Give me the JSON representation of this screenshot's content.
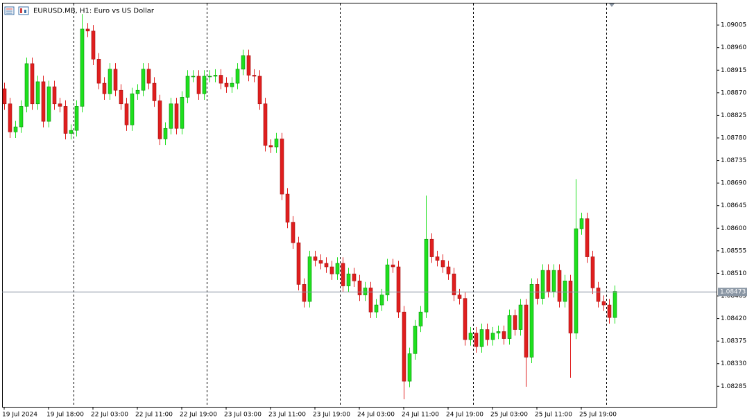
{
  "chart_data": {
    "type": "candlestick",
    "title": "EURUSD.MB, H1:  Euro vs US Dollar",
    "categories": [
      "19 Jul 2024",
      null,
      null,
      null,
      null,
      null,
      null,
      null,
      "19 Jul 18:00",
      null,
      null,
      null,
      null,
      null,
      null,
      null,
      "22 Jul 03:00",
      null,
      null,
      null,
      null,
      null,
      null,
      null,
      "22 Jul 11:00",
      null,
      null,
      null,
      null,
      null,
      null,
      null,
      "22 Jul 19:00",
      null,
      null,
      null,
      null,
      null,
      null,
      null,
      "23 Jul 03:00",
      null,
      null,
      null,
      null,
      null,
      null,
      null,
      "23 Jul 11:00",
      null,
      null,
      null,
      null,
      null,
      null,
      null,
      "23 Jul 19:00",
      null,
      null,
      null,
      null,
      null,
      null,
      null,
      "24 Jul 03:00",
      null,
      null,
      null,
      null,
      null,
      null,
      null,
      "24 Jul 11:00",
      null,
      null,
      null,
      null,
      null,
      null,
      null,
      "24 Jul 19:00",
      null,
      null,
      null,
      null,
      null,
      null,
      null,
      "25 Jul 03:00",
      null,
      null,
      null,
      null,
      null,
      null,
      null,
      "25 Jul 11:00",
      null,
      null,
      null,
      null,
      null,
      null,
      null,
      "25 Jul 19:00",
      null,
      null,
      null,
      null,
      null,
      null
    ],
    "open": [
      1.08878,
      1.08848,
      1.08792,
      1.08802,
      1.08843,
      1.08928,
      1.08848,
      1.08892,
      1.08813,
      1.08882,
      1.08848,
      1.08843,
      1.08789,
      1.08795,
      1.08843,
      1.08997,
      1.08993,
      1.08937,
      1.08889,
      1.08868,
      1.08917,
      1.08875,
      1.08848,
      1.08806,
      1.08868,
      1.08875,
      1.08917,
      1.08889,
      1.08854,
      1.08778,
      1.08799,
      1.08848,
      1.08799,
      1.08861,
      1.08903,
      1.08903,
      1.08868,
      1.08903,
      1.08903,
      1.08905,
      1.08889,
      1.08882,
      1.08889,
      1.08917,
      1.08944,
      1.08905,
      1.08903,
      1.08848,
      1.08765,
      1.08762,
      1.08778,
      1.08668,
      1.08612,
      1.08571,
      1.08488,
      1.08454,
      1.08543,
      1.08536,
      1.0853,
      1.08523,
      1.08509,
      1.0853,
      1.08485,
      1.08509,
      1.08495,
      1.08467,
      1.08481,
      1.08433,
      1.08447,
      1.08467,
      1.08527,
      1.08523,
      1.08433,
      1.08295,
      1.0835,
      1.08405,
      1.08433,
      1.08578,
      1.08543,
      1.08536,
      1.08523,
      1.08509,
      1.08467,
      1.0846,
      1.08378,
      1.08391,
      1.08364,
      1.08398,
      1.08378,
      1.08391,
      1.08394,
      1.0838,
      1.08426,
      1.08398,
      1.08447,
      1.08343,
      1.08488,
      1.0846,
      1.08516,
      1.08474,
      1.08516,
      1.08454,
      1.08495,
      1.08391,
      1.08599,
      1.08619,
      1.08543,
      1.08481,
      1.08454,
      1.08447,
      1.08422
    ],
    "high": [
      1.0889,
      1.0886,
      1.08814,
      1.08855,
      1.0894,
      1.0894,
      1.08904,
      1.08904,
      1.08894,
      1.08894,
      1.0886,
      1.08855,
      1.08807,
      1.08855,
      1.09027,
      1.09009,
      1.09005,
      1.08949,
      1.08901,
      1.08929,
      1.08929,
      1.08887,
      1.0886,
      1.0888,
      1.08887,
      1.08929,
      1.08929,
      1.08901,
      1.08866,
      1.08811,
      1.0886,
      1.0886,
      1.08873,
      1.08915,
      1.08915,
      1.08915,
      1.08915,
      1.08915,
      1.08917,
      1.08917,
      1.08901,
      1.08901,
      1.08929,
      1.08956,
      1.08956,
      1.08917,
      1.08915,
      1.0886,
      1.08777,
      1.0879,
      1.0879,
      1.0868,
      1.08624,
      1.08583,
      1.085,
      1.08555,
      1.08555,
      1.08548,
      1.08542,
      1.08535,
      1.08542,
      1.08542,
      1.08521,
      1.08521,
      1.08507,
      1.08493,
      1.08493,
      1.08459,
      1.08479,
      1.08539,
      1.08539,
      1.08535,
      1.08445,
      1.08362,
      1.08417,
      1.08445,
      1.08665,
      1.0859,
      1.08555,
      1.08548,
      1.08535,
      1.08521,
      1.08479,
      1.08472,
      1.08403,
      1.08403,
      1.0841,
      1.0841,
      1.08403,
      1.08406,
      1.08406,
      1.08438,
      1.08438,
      1.08459,
      1.08459,
      1.085,
      1.085,
      1.08528,
      1.08528,
      1.08528,
      1.08528,
      1.08507,
      1.08507,
      1.08698,
      1.08631,
      1.08631,
      1.08555,
      1.08493,
      1.08466,
      1.08459,
      1.08486
    ],
    "low": [
      1.08836,
      1.0878,
      1.0878,
      1.0879,
      1.08831,
      1.08836,
      1.08836,
      1.08801,
      1.08801,
      1.08836,
      1.08831,
      1.08777,
      1.08777,
      1.08783,
      1.08831,
      1.08981,
      1.08925,
      1.08877,
      1.08856,
      1.08856,
      1.08863,
      1.08836,
      1.08794,
      1.08794,
      1.08856,
      1.08863,
      1.08877,
      1.08842,
      1.08766,
      1.08766,
      1.08787,
      1.08787,
      1.08787,
      1.08849,
      1.08891,
      1.08856,
      1.08856,
      1.08891,
      1.08891,
      1.08877,
      1.0887,
      1.0887,
      1.08877,
      1.08905,
      1.08893,
      1.08891,
      1.08836,
      1.08753,
      1.0875,
      1.0875,
      1.08656,
      1.086,
      1.08559,
      1.08476,
      1.08442,
      1.08442,
      1.08524,
      1.08518,
      1.08511,
      1.08497,
      1.08497,
      1.08473,
      1.08473,
      1.08483,
      1.08455,
      1.08455,
      1.08421,
      1.08421,
      1.08435,
      1.08455,
      1.08511,
      1.08421,
      1.08259,
      1.08283,
      1.08338,
      1.08393,
      1.08421,
      1.08531,
      1.08524,
      1.08511,
      1.08497,
      1.08455,
      1.08448,
      1.08366,
      1.08366,
      1.08352,
      1.08352,
      1.08366,
      1.08366,
      1.08379,
      1.08368,
      1.08368,
      1.08386,
      1.08386,
      1.08284,
      1.08331,
      1.08448,
      1.08448,
      1.08462,
      1.08462,
      1.08442,
      1.08442,
      1.08302,
      1.08379,
      1.08587,
      1.08531,
      1.08469,
      1.08442,
      1.08435,
      1.0841,
      1.0841
    ],
    "close": [
      1.08848,
      1.08792,
      1.08802,
      1.08843,
      1.08928,
      1.08848,
      1.08892,
      1.08813,
      1.08882,
      1.08848,
      1.08843,
      1.08789,
      1.08795,
      1.08843,
      1.08997,
      1.08993,
      1.08937,
      1.08889,
      1.08868,
      1.08917,
      1.08875,
      1.08848,
      1.08806,
      1.08868,
      1.08875,
      1.08917,
      1.08889,
      1.08854,
      1.08778,
      1.08799,
      1.08848,
      1.08799,
      1.08861,
      1.08903,
      1.08903,
      1.08868,
      1.08903,
      1.08903,
      1.08905,
      1.08889,
      1.08882,
      1.08889,
      1.08917,
      1.08944,
      1.08905,
      1.08903,
      1.08848,
      1.08765,
      1.08762,
      1.08778,
      1.08668,
      1.08612,
      1.08571,
      1.08488,
      1.08454,
      1.08543,
      1.08536,
      1.0853,
      1.08523,
      1.08509,
      1.0853,
      1.08485,
      1.08509,
      1.08495,
      1.08467,
      1.08481,
      1.08433,
      1.08447,
      1.08467,
      1.08527,
      1.08523,
      1.08433,
      1.08295,
      1.0835,
      1.08405,
      1.08433,
      1.08578,
      1.08543,
      1.08536,
      1.08523,
      1.08509,
      1.08467,
      1.0846,
      1.08378,
      1.08391,
      1.08364,
      1.08398,
      1.08378,
      1.08391,
      1.08394,
      1.0838,
      1.08426,
      1.08398,
      1.08447,
      1.08343,
      1.08488,
      1.0846,
      1.08516,
      1.08474,
      1.08516,
      1.08454,
      1.08495,
      1.08391,
      1.08599,
      1.08619,
      1.08543,
      1.08481,
      1.08454,
      1.08447,
      1.08422,
      1.08474
    ],
    "up_color": "#1ee01e",
    "down_color": "#e01e1e",
    "current_price": 1.08473,
    "ylim": [
      1.08244,
      1.09048
    ],
    "yticks": [
      1.09005,
      {
        "value": 1.0896,
        "label": "1.08960"
      },
      1.08915,
      {
        "value": 1.0887,
        "label": "1.08870"
      },
      1.08825,
      {
        "value": 1.0878,
        "label": "1.08780"
      },
      1.08735,
      {
        "value": 1.0869,
        "label": "1.08690"
      },
      1.08645,
      {
        "value": 1.086,
        "label": "1.08600"
      },
      1.08555,
      {
        "value": 1.0851,
        "label": "1.08510"
      },
      1.08465,
      {
        "value": 1.0842,
        "label": "1.08420"
      },
      1.08375,
      {
        "value": 1.0833,
        "label": "1.08330"
      },
      1.08285
    ]
  }
}
